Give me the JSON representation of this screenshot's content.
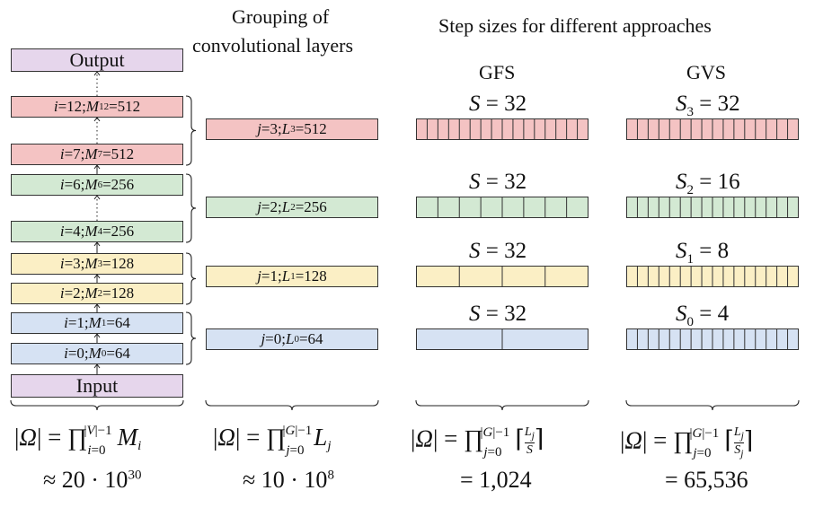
{
  "colors": {
    "purple": "#e6d6ec",
    "red": "#f4c3c3",
    "green": "#d3e9d3",
    "yellow": "#fbefc5",
    "blue": "#d6e2f3"
  },
  "headers": {
    "grouping_line1": "Grouping of",
    "grouping_line2": "convolutional layers",
    "step_sizes": "Step sizes for different approaches",
    "gfs": "GFS",
    "gvs": "GVS"
  },
  "layers": {
    "output": "Output",
    "input": "Input",
    "items": [
      {
        "i": "12",
        "m": "512",
        "color": "red"
      },
      {
        "i": "7",
        "m": "512",
        "color": "red"
      },
      {
        "i": "6",
        "m": "256",
        "color": "green"
      },
      {
        "i": "4",
        "m": "256",
        "color": "green"
      },
      {
        "i": "3",
        "m": "128",
        "color": "yellow"
      },
      {
        "i": "2",
        "m": "128",
        "color": "yellow"
      },
      {
        "i": "1",
        "m": "64",
        "color": "blue"
      },
      {
        "i": "0",
        "m": "64",
        "color": "blue"
      }
    ]
  },
  "groups": [
    {
      "j": "3",
      "l": "512",
      "color": "red",
      "gfs_s": "32",
      "gfs_cells": 16,
      "gvs_sub": "3",
      "gvs_s": "32",
      "gvs_cells": 16
    },
    {
      "j": "2",
      "l": "256",
      "color": "green",
      "gfs_s": "32",
      "gfs_cells": 8,
      "gvs_sub": "2",
      "gvs_s": "16",
      "gvs_cells": 16
    },
    {
      "j": "1",
      "l": "128",
      "color": "yellow",
      "gfs_s": "32",
      "gfs_cells": 4,
      "gvs_sub": "1",
      "gvs_s": "8",
      "gvs_cells": 16
    },
    {
      "j": "0",
      "l": "64",
      "color": "blue",
      "gfs_s": "32",
      "gfs_cells": 2,
      "gvs_sub": "0",
      "gvs_s": "4",
      "gvs_cells": 16
    }
  ],
  "formulas": {
    "col1_result": "≈ 20 · 10",
    "col1_exp": "30",
    "col2_result": "≈ 10 · 10",
    "col2_exp": "8",
    "col3_result": "= 1,024",
    "col4_result": "= 65,536"
  }
}
